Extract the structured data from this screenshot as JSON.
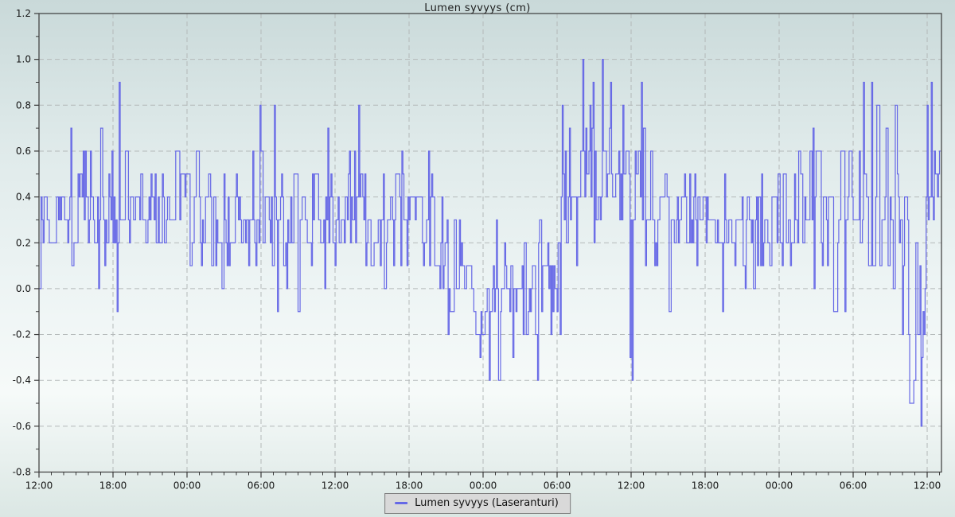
{
  "title": "Lumen syvyys (cm)",
  "legend": {
    "label": "Lumen syvyys (Laseranturi)",
    "position": "bottom-center"
  },
  "colors": {
    "series_line": "#6668e6",
    "grid": "#b4b9b9",
    "axis": "#3a3a3a",
    "tick_label": "#141414",
    "legend_bg": "#d9d9d9",
    "legend_border": "#7c7c7c"
  },
  "chart_data": {
    "type": "line",
    "title": "Lumen syvyys (cm)",
    "xlabel": "",
    "ylabel": "",
    "unit": "cm",
    "grid": true,
    "legend_position": "bottom-center",
    "ylim": [
      -0.8,
      1.2
    ],
    "y_tick_step": 0.2,
    "y_minor_step": 0.1,
    "y_tick_labels": [
      "1.2",
      "1.0",
      "0.8",
      "0.6",
      "0.4",
      "0.2",
      "0.0",
      "-0.2",
      "-0.4",
      "-0.6",
      "-0.8"
    ],
    "x_axis_hours": 73.16,
    "x_major_step_hours": 6,
    "x_minor_step_hours": 1,
    "x_tick_labels": [
      "12:00",
      "18:00",
      "00:00",
      "06:00",
      "12:00",
      "18:00",
      "00:00",
      "06:00",
      "12:00",
      "18:00",
      "00:00",
      "06:00",
      "12:00"
    ],
    "series": [
      {
        "name": "Lumen syvyys (Laseranturi)",
        "color": "#6668e6",
        "style": "step",
        "sample_minutes": 5,
        "quantization_cm": 0.1,
        "generator": {
          "seed": 7,
          "persistence": 0.3,
          "segments": [
            {
              "from_h": 0,
              "to_h": 32.4,
              "approx_mean": 0.31,
              "range": [
                -0.1,
                0.9
              ],
              "levels": [
                [
                  -0.1,
                  1
                ],
                [
                  0,
                  4
                ],
                [
                  0.1,
                  10
                ],
                [
                  0.2,
                  22
                ],
                [
                  0.3,
                  26
                ],
                [
                  0.4,
                  20
                ],
                [
                  0.5,
                  10
                ],
                [
                  0.6,
                  4
                ],
                [
                  0.7,
                  1.2
                ],
                [
                  0.8,
                  0.3
                ]
              ]
            },
            {
              "from_h": 32.4,
              "to_h": 35,
              "approx_mean": 0.08,
              "range": [
                -0.2,
                0.4
              ],
              "levels": [
                [
                  -0.2,
                  2
                ],
                [
                  -0.1,
                  5
                ],
                [
                  0,
                  9
                ],
                [
                  0.1,
                  11
                ],
                [
                  0.2,
                  10
                ],
                [
                  0.3,
                  6
                ],
                [
                  0.4,
                  2
                ]
              ]
            },
            {
              "from_h": 35,
              "to_h": 42.3,
              "approx_mean": -0.02,
              "range": [
                -0.4,
                0.4
              ],
              "levels": [
                [
                  -0.4,
                  0.6
                ],
                [
                  -0.3,
                  2.5
                ],
                [
                  -0.2,
                  11
                ],
                [
                  -0.1,
                  19
                ],
                [
                  0,
                  24
                ],
                [
                  0.1,
                  19
                ],
                [
                  0.2,
                  5
                ],
                [
                  0.3,
                  1.2
                ],
                [
                  0.4,
                  0.4
                ]
              ]
            },
            {
              "from_h": 42.3,
              "to_h": 43.8,
              "approx_mean": 0.38,
              "range": [
                0,
                0.9
              ],
              "levels": [
                [
                  0,
                  2
                ],
                [
                  0.1,
                  4
                ],
                [
                  0.2,
                  8
                ],
                [
                  0.3,
                  10
                ],
                [
                  0.4,
                  10
                ],
                [
                  0.5,
                  8
                ],
                [
                  0.6,
                  5
                ],
                [
                  0.7,
                  3
                ],
                [
                  0.8,
                  1.5
                ],
                [
                  0.9,
                  0.6
                ]
              ]
            },
            {
              "from_h": 43.8,
              "to_h": 49,
              "approx_mean": 0.47,
              "range": [
                -0.1,
                1.0
              ],
              "levels": [
                [
                  -0.1,
                  0.4
                ],
                [
                  0.1,
                  2
                ],
                [
                  0.2,
                  5
                ],
                [
                  0.3,
                  10
                ],
                [
                  0.4,
                  15
                ],
                [
                  0.5,
                  15
                ],
                [
                  0.6,
                  10
                ],
                [
                  0.7,
                  6
                ],
                [
                  0.8,
                  3.5
                ],
                [
                  0.9,
                  1.6
                ],
                [
                  1.0,
                  0.4
                ]
              ]
            },
            {
              "from_h": 49,
              "to_h": 52.5,
              "approx_mean": 0.35,
              "range": [
                -0.3,
                0.8
              ],
              "levels": [
                [
                  -0.3,
                  0.4
                ],
                [
                  -0.1,
                  1
                ],
                [
                  0.1,
                  3
                ],
                [
                  0.2,
                  8
                ],
                [
                  0.3,
                  13
                ],
                [
                  0.4,
                  13
                ],
                [
                  0.5,
                  8
                ],
                [
                  0.6,
                  4
                ],
                [
                  0.7,
                  1.5
                ],
                [
                  0.8,
                  0.5
                ]
              ]
            },
            {
              "from_h": 52.5,
              "to_h": 65,
              "approx_mean": 0.27,
              "range": [
                -0.2,
                0.7
              ],
              "levels": [
                [
                  -0.2,
                  0.6
                ],
                [
                  -0.1,
                  2
                ],
                [
                  0,
                  4
                ],
                [
                  0.1,
                  10
                ],
                [
                  0.2,
                  20
                ],
                [
                  0.3,
                  24
                ],
                [
                  0.4,
                  15
                ],
                [
                  0.5,
                  7
                ],
                [
                  0.6,
                  3.5
                ],
                [
                  0.7,
                  0.7
                ]
              ]
            },
            {
              "from_h": 65,
              "to_h": 70.5,
              "approx_mean": 0.31,
              "range": [
                -0.2,
                0.9
              ],
              "levels": [
                [
                  -0.2,
                  1
                ],
                [
                  -0.1,
                  2
                ],
                [
                  0,
                  3
                ],
                [
                  0.1,
                  6
                ],
                [
                  0.2,
                  13
                ],
                [
                  0.3,
                  17
                ],
                [
                  0.4,
                  15
                ],
                [
                  0.5,
                  9
                ],
                [
                  0.6,
                  6
                ],
                [
                  0.7,
                  2
                ],
                [
                  0.8,
                  0.8
                ],
                [
                  0.9,
                  0.6
                ]
              ]
            },
            {
              "from_h": 70.5,
              "to_h": 71.9,
              "approx_mean": -0.22,
              "range": [
                -0.6,
                0.2
              ],
              "levels": [
                [
                  -0.6,
                  0.7
                ],
                [
                  -0.5,
                  1
                ],
                [
                  -0.4,
                  1.6
                ],
                [
                  -0.3,
                  1.6
                ],
                [
                  -0.2,
                  1.6
                ],
                [
                  -0.1,
                  1.3
                ],
                [
                  0,
                  1.2
                ],
                [
                  0.1,
                  1
                ],
                [
                  0.2,
                  0.6
                ]
              ]
            },
            {
              "from_h": 71.9,
              "to_h": 73.16,
              "approx_mean": 0.45,
              "range": [
                0.2,
                0.9
              ],
              "levels": [
                [
                  0.2,
                  3
                ],
                [
                  0.3,
                  5
                ],
                [
                  0.4,
                  7
                ],
                [
                  0.5,
                  5
                ],
                [
                  0.6,
                  3
                ],
                [
                  0.7,
                  1.5
                ],
                [
                  0.8,
                  1.5
                ],
                [
                  0.9,
                  1
                ]
              ]
            }
          ],
          "events": [
            [
              2.6,
              0.7
            ],
            [
              6.3,
              -0.1
            ],
            [
              6.5,
              0.9
            ],
            [
              19.1,
              0.8
            ],
            [
              19.3,
              -0.1
            ],
            [
              25.9,
              0.8
            ],
            [
              36.5,
              -0.4
            ],
            [
              37.3,
              -0.4
            ],
            [
              44.1,
              1.0
            ],
            [
              44.9,
              0.9
            ],
            [
              45.7,
              1.0
            ],
            [
              46.3,
              0.9
            ],
            [
              47.9,
              -0.3
            ],
            [
              48.1,
              -0.4
            ],
            [
              66.8,
              0.9
            ],
            [
              67.5,
              0.9
            ],
            [
              71.5,
              -0.6
            ],
            [
              72.3,
              0.9
            ]
          ]
        }
      }
    ]
  }
}
